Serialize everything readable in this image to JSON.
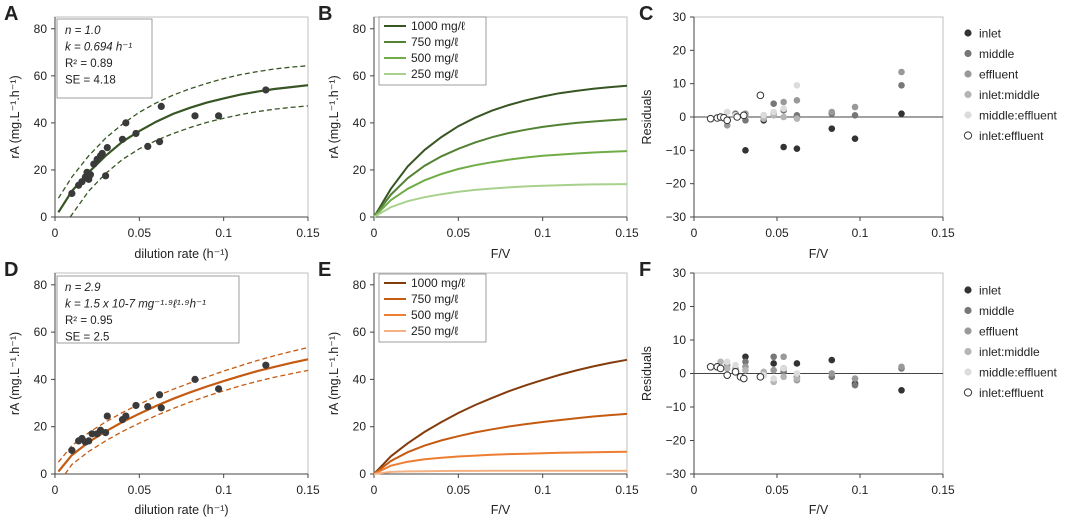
{
  "figure": {
    "panel_letters": [
      "A",
      "B",
      "C",
      "D",
      "E",
      "F"
    ]
  },
  "chart_data": [
    {
      "id": "A",
      "type": "scatter",
      "xlabel": "dilution rate (h⁻¹)",
      "ylabel": "rA (mg.L⁻¹.h⁻¹)",
      "xlim": [
        0,
        0.15
      ],
      "ylim": [
        0,
        85
      ],
      "xticks": [
        0,
        0.05,
        0.1,
        0.15
      ],
      "xtick_labels": [
        "0",
        "0.05",
        "0.1",
        "0.15"
      ],
      "yticks": [
        0,
        20,
        40,
        60,
        80
      ],
      "ytick_labels": [
        "0",
        "20",
        "40",
        "60",
        "80"
      ],
      "annotation": [
        "n = 1.0",
        "k = 0.694 h⁻¹",
        "R² = 0.89",
        "SE = 4.18"
      ],
      "fit_color": "#375623",
      "point_color": "#3a3a3a",
      "fit": {
        "x": [
          0.002,
          0.01,
          0.02,
          0.03,
          0.04,
          0.05,
          0.06,
          0.07,
          0.08,
          0.09,
          0.1,
          0.11,
          0.12,
          0.13,
          0.14,
          0.15
        ],
        "y": [
          2,
          11,
          19,
          26,
          32,
          36.5,
          40.5,
          43.8,
          46.4,
          48.6,
          50.4,
          52,
          53.3,
          54.4,
          55.2,
          56
        ]
      },
      "upper": {
        "x": [
          0.002,
          0.01,
          0.02,
          0.03,
          0.04,
          0.05,
          0.06,
          0.07,
          0.08,
          0.09,
          0.1,
          0.11,
          0.12,
          0.13,
          0.14,
          0.15
        ],
        "y": [
          8,
          17,
          26,
          33.5,
          39.5,
          44.5,
          48.5,
          51.8,
          54.5,
          56.8,
          58.8,
          60.5,
          61.8,
          62.9,
          63.7,
          64.3
        ]
      },
      "lower": {
        "x": [
          0.009,
          0.015,
          0.02,
          0.03,
          0.04,
          0.05,
          0.06,
          0.07,
          0.08,
          0.09,
          0.1,
          0.11,
          0.12,
          0.13,
          0.14,
          0.15
        ],
        "y": [
          0,
          6,
          11,
          18.5,
          24.5,
          29,
          32.5,
          35.5,
          38,
          40.2,
          42,
          43.5,
          44.8,
          45.8,
          46.6,
          47.2
        ]
      },
      "points": {
        "x": [
          0.01,
          0.014,
          0.016,
          0.018,
          0.019,
          0.02,
          0.021,
          0.023,
          0.025,
          0.027,
          0.028,
          0.03,
          0.031,
          0.04,
          0.042,
          0.048,
          0.055,
          0.062,
          0.063,
          0.083,
          0.097,
          0.125
        ],
        "y": [
          10,
          13.5,
          15,
          17,
          19,
          16,
          18,
          22.5,
          24.5,
          26,
          27,
          17.5,
          29.5,
          33,
          40,
          35.5,
          30,
          32,
          47,
          43,
          43,
          54
        ]
      }
    },
    {
      "id": "B",
      "type": "line",
      "xlabel": "F/V",
      "ylabel": "rA (mg.L⁻¹.h⁻¹)",
      "xlim": [
        0,
        0.15
      ],
      "ylim": [
        0,
        85
      ],
      "xticks": [
        0,
        0.05,
        0.1,
        0.15
      ],
      "xtick_labels": [
        "0",
        "0.05",
        "0.1",
        "0.15"
      ],
      "yticks": [
        0,
        20,
        40,
        60,
        80
      ],
      "ytick_labels": [
        "0",
        "20",
        "40",
        "60",
        "80"
      ],
      "x": [
        0,
        0.01,
        0.02,
        0.03,
        0.04,
        0.05,
        0.06,
        0.07,
        0.08,
        0.09,
        0.1,
        0.11,
        0.12,
        0.13,
        0.14,
        0.15
      ],
      "series": [
        {
          "name": "1000 mg/ℓ",
          "color": "#375623",
          "values": [
            0,
            12,
            21.5,
            28.5,
            34,
            38.6,
            42.2,
            45.2,
            47.6,
            49.6,
            51.2,
            52.6,
            53.6,
            54.5,
            55.2,
            55.8
          ]
        },
        {
          "name": "750 mg/ℓ",
          "color": "#548235",
          "values": [
            0,
            9.5,
            16.5,
            21.8,
            25.8,
            29,
            31.7,
            33.9,
            35.7,
            37.1,
            38.3,
            39.2,
            40,
            40.6,
            41.1,
            41.6
          ]
        },
        {
          "name": "500 mg/ℓ",
          "color": "#70ad47",
          "values": [
            0,
            7.2,
            12,
            15.6,
            18.3,
            20.4,
            22,
            23.3,
            24.4,
            25.3,
            26,
            26.5,
            27,
            27.4,
            27.7,
            28
          ]
        },
        {
          "name": "250 mg/ℓ",
          "color": "#a9d18e",
          "values": [
            0,
            4.2,
            6.7,
            8.4,
            9.7,
            10.7,
            11.5,
            12.1,
            12.6,
            13,
            13.3,
            13.5,
            13.7,
            13.85,
            13.95,
            14
          ]
        }
      ]
    },
    {
      "id": "C",
      "type": "scatter",
      "xlabel": "F/V",
      "ylabel": "Residuals",
      "xlim": [
        0,
        0.15
      ],
      "ylim": [
        -30,
        30
      ],
      "xticks": [
        0,
        0.05,
        0.1,
        0.15
      ],
      "xtick_labels": [
        "0",
        "0.05",
        "0.1",
        "0.15"
      ],
      "yticks": [
        -30,
        -20,
        -10,
        0,
        10,
        20,
        30
      ],
      "ytick_labels": [
        "−30",
        "−20",
        "−10",
        "0",
        "10",
        "20",
        "30"
      ],
      "series": [
        {
          "name": "inlet",
          "color": "#333333",
          "x": [
            0.031,
            0.042,
            0.054,
            0.062,
            0.083,
            0.097,
            0.125
          ],
          "y": [
            -10,
            -1,
            -9,
            -9.5,
            -3.5,
            -6.5,
            1
          ]
        },
        {
          "name": "middle",
          "color": "#777777",
          "x": [
            0.025,
            0.031,
            0.042,
            0.048,
            0.054,
            0.062,
            0.083,
            0.097,
            0.125
          ],
          "y": [
            1,
            -1,
            0.5,
            4,
            2,
            0.5,
            1,
            0.5,
            9.5
          ]
        },
        {
          "name": "effluent",
          "color": "#999999",
          "x": [
            0.02,
            0.025,
            0.031,
            0.042,
            0.048,
            0.054,
            0.062,
            0.083,
            0.097,
            0.125
          ],
          "y": [
            -2.5,
            0.5,
            1,
            -0.5,
            1,
            4.5,
            5,
            1.5,
            3,
            13.5
          ]
        },
        {
          "name": "inlet:middle",
          "color": "#b5b5b5",
          "x": [
            0.02,
            0.031,
            0.042,
            0.048,
            0.054,
            0.062
          ],
          "y": [
            -1,
            0.5,
            -0.5,
            0.5,
            0,
            -0.5
          ]
        },
        {
          "name": "middle:effluent",
          "color": "#dcdcdc",
          "x": [
            0.02,
            0.025,
            0.042,
            0.048,
            0.054,
            0.062
          ],
          "y": [
            1.5,
            0.5,
            0.5,
            1.5,
            2.5,
            9.5
          ]
        },
        {
          "name": "inlet:effluent",
          "color": "#ffffff",
          "open": true,
          "x": [
            0.01,
            0.014,
            0.016,
            0.018,
            0.02,
            0.026,
            0.03,
            0.04
          ],
          "y": [
            -0.5,
            -0.3,
            0,
            -0.2,
            -1,
            0,
            0.5,
            6.5
          ]
        }
      ]
    },
    {
      "id": "D",
      "type": "scatter",
      "xlabel": "dilution rate (h⁻¹)",
      "ylabel": "rA (mg.L⁻¹.h⁻¹)",
      "xlim": [
        0,
        0.15
      ],
      "ylim": [
        0,
        85
      ],
      "xticks": [
        0,
        0.05,
        0.1,
        0.15
      ],
      "xtick_labels": [
        "0",
        "0.05",
        "0.1",
        "0.15"
      ],
      "yticks": [
        0,
        20,
        40,
        60,
        80
      ],
      "ytick_labels": [
        "0",
        "20",
        "40",
        "60",
        "80"
      ],
      "annotation": [
        "n = 2.9",
        "k = 1.5 x 10-7 mg⁻¹·⁹ℓ¹·⁹h⁻¹",
        "R² = 0.95",
        "SE = 2.5"
      ],
      "fit_color": "#c55a11",
      "point_color": "#3a3a3a",
      "fit": {
        "x": [
          0.002,
          0.01,
          0.02,
          0.03,
          0.04,
          0.05,
          0.06,
          0.07,
          0.08,
          0.09,
          0.1,
          0.11,
          0.12,
          0.13,
          0.14,
          0.15
        ],
        "y": [
          1,
          8,
          13.5,
          18,
          22,
          25.5,
          28.8,
          31.8,
          34.5,
          37,
          39.3,
          41.5,
          43.5,
          45.3,
          47,
          48.5
        ]
      },
      "upper": {
        "x": [
          0.002,
          0.01,
          0.02,
          0.03,
          0.04,
          0.05,
          0.06,
          0.07,
          0.08,
          0.09,
          0.1,
          0.11,
          0.12,
          0.13,
          0.14,
          0.15
        ],
        "y": [
          5,
          12,
          17.5,
          22,
          26,
          29.5,
          32.8,
          35.8,
          38.5,
          41,
          43.5,
          45.8,
          48,
          50,
          51.8,
          53.5
        ]
      },
      "lower": {
        "x": [
          0.006,
          0.01,
          0.02,
          0.03,
          0.04,
          0.05,
          0.06,
          0.07,
          0.08,
          0.09,
          0.1,
          0.11,
          0.12,
          0.13,
          0.14,
          0.15
        ],
        "y": [
          0,
          4,
          9.5,
          14,
          18,
          21.5,
          24.7,
          27.7,
          30.4,
          32.9,
          35.2,
          37.3,
          39.2,
          40.9,
          42.4,
          43.8
        ]
      },
      "points": {
        "x": [
          0.01,
          0.014,
          0.016,
          0.018,
          0.02,
          0.022,
          0.025,
          0.027,
          0.03,
          0.031,
          0.04,
          0.042,
          0.048,
          0.055,
          0.062,
          0.063,
          0.083,
          0.097,
          0.125
        ],
        "y": [
          10,
          14,
          15,
          13.5,
          14,
          17,
          17,
          18.5,
          17.5,
          24.5,
          23,
          24.5,
          29,
          28.5,
          33.5,
          28,
          40,
          36,
          46
        ]
      }
    },
    {
      "id": "E",
      "type": "line",
      "xlabel": "F/V",
      "ylabel": "rA (mg.L⁻¹.h⁻¹)",
      "xlim": [
        0,
        0.15
      ],
      "ylim": [
        0,
        85
      ],
      "xticks": [
        0,
        0.05,
        0.1,
        0.15
      ],
      "xtick_labels": [
        "0",
        "0.05",
        "0.1",
        "0.15"
      ],
      "yticks": [
        0,
        20,
        40,
        60,
        80
      ],
      "ytick_labels": [
        "0",
        "20",
        "40",
        "60",
        "80"
      ],
      "x": [
        0,
        0.01,
        0.02,
        0.03,
        0.04,
        0.05,
        0.06,
        0.07,
        0.08,
        0.09,
        0.1,
        0.11,
        0.12,
        0.13,
        0.14,
        0.15
      ],
      "series": [
        {
          "name": "1000 mg/ℓ",
          "color": "#843c0c",
          "values": [
            0,
            7.5,
            13,
            17.8,
            22,
            25.8,
            29.2,
            32.2,
            35,
            37.5,
            39.8,
            41.9,
            43.8,
            45.5,
            47,
            48.3
          ]
        },
        {
          "name": "750 mg/ℓ",
          "color": "#c55a11",
          "values": [
            0,
            5.5,
            9.2,
            12,
            14.2,
            16,
            17.6,
            18.9,
            20.1,
            21.1,
            22,
            22.8,
            23.6,
            24.3,
            24.9,
            25.4
          ]
        },
        {
          "name": "500 mg/ℓ",
          "color": "#ed7d31",
          "values": [
            0,
            3.5,
            5.2,
            6.2,
            6.9,
            7.4,
            7.8,
            8.1,
            8.4,
            8.6,
            8.8,
            8.95,
            9.1,
            9.2,
            9.3,
            9.4
          ]
        },
        {
          "name": "250 mg/ℓ",
          "color": "#f4b183",
          "values": [
            0,
            0.9,
            1.1,
            1.2,
            1.25,
            1.3,
            1.32,
            1.34,
            1.36,
            1.37,
            1.38,
            1.39,
            1.4,
            1.4,
            1.4,
            1.4
          ]
        }
      ]
    },
    {
      "id": "F",
      "type": "scatter",
      "xlabel": "F/V",
      "ylabel": "Residuals",
      "xlim": [
        0,
        0.15
      ],
      "ylim": [
        -30,
        30
      ],
      "xticks": [
        0,
        0.05,
        0.1,
        0.15
      ],
      "xtick_labels": [
        "0",
        "0.05",
        "0.1",
        "0.15"
      ],
      "yticks": [
        -30,
        -20,
        -10,
        0,
        10,
        20,
        30
      ],
      "ytick_labels": [
        "−30",
        "−20",
        "−10",
        "0",
        "10",
        "20",
        "30"
      ],
      "series": [
        {
          "name": "inlet",
          "color": "#333333",
          "x": [
            0.031,
            0.048,
            0.054,
            0.062,
            0.083,
            0.097,
            0.125
          ],
          "y": [
            5,
            3,
            1.5,
            3,
            4,
            -3,
            -5
          ]
        },
        {
          "name": "middle",
          "color": "#777777",
          "x": [
            0.025,
            0.031,
            0.042,
            0.048,
            0.054,
            0.062,
            0.083,
            0.097,
            0.125
          ],
          "y": [
            0.5,
            3.5,
            0,
            5,
            0.5,
            -1,
            -1,
            -3.5,
            1.5
          ]
        },
        {
          "name": "effluent",
          "color": "#999999",
          "x": [
            0.02,
            0.025,
            0.031,
            0.042,
            0.048,
            0.054,
            0.062,
            0.083,
            0.097,
            0.125
          ],
          "y": [
            2.5,
            1.5,
            2,
            -0.5,
            1,
            5,
            -2,
            0,
            -1.5,
            2
          ]
        },
        {
          "name": "inlet:middle",
          "color": "#b5b5b5",
          "x": [
            0.016,
            0.02,
            0.031,
            0.042,
            0.048,
            0.054,
            0.062
          ],
          "y": [
            3.5,
            1.5,
            1,
            0.5,
            -2.5,
            -1,
            -1.5
          ]
        },
        {
          "name": "middle:effluent",
          "color": "#dcdcdc",
          "x": [
            0.02,
            0.025,
            0.042,
            0.048,
            0.054,
            0.062
          ],
          "y": [
            3.5,
            2.5,
            -0.5,
            -1.5,
            1.5,
            0
          ]
        },
        {
          "name": "inlet:effluent",
          "color": "#ffffff",
          "open": true,
          "x": [
            0.01,
            0.014,
            0.016,
            0.02,
            0.025,
            0.028,
            0.03,
            0.04
          ],
          "y": [
            2,
            2,
            1.5,
            -0.5,
            0.5,
            -1,
            -1.5,
            -1
          ]
        }
      ]
    }
  ]
}
